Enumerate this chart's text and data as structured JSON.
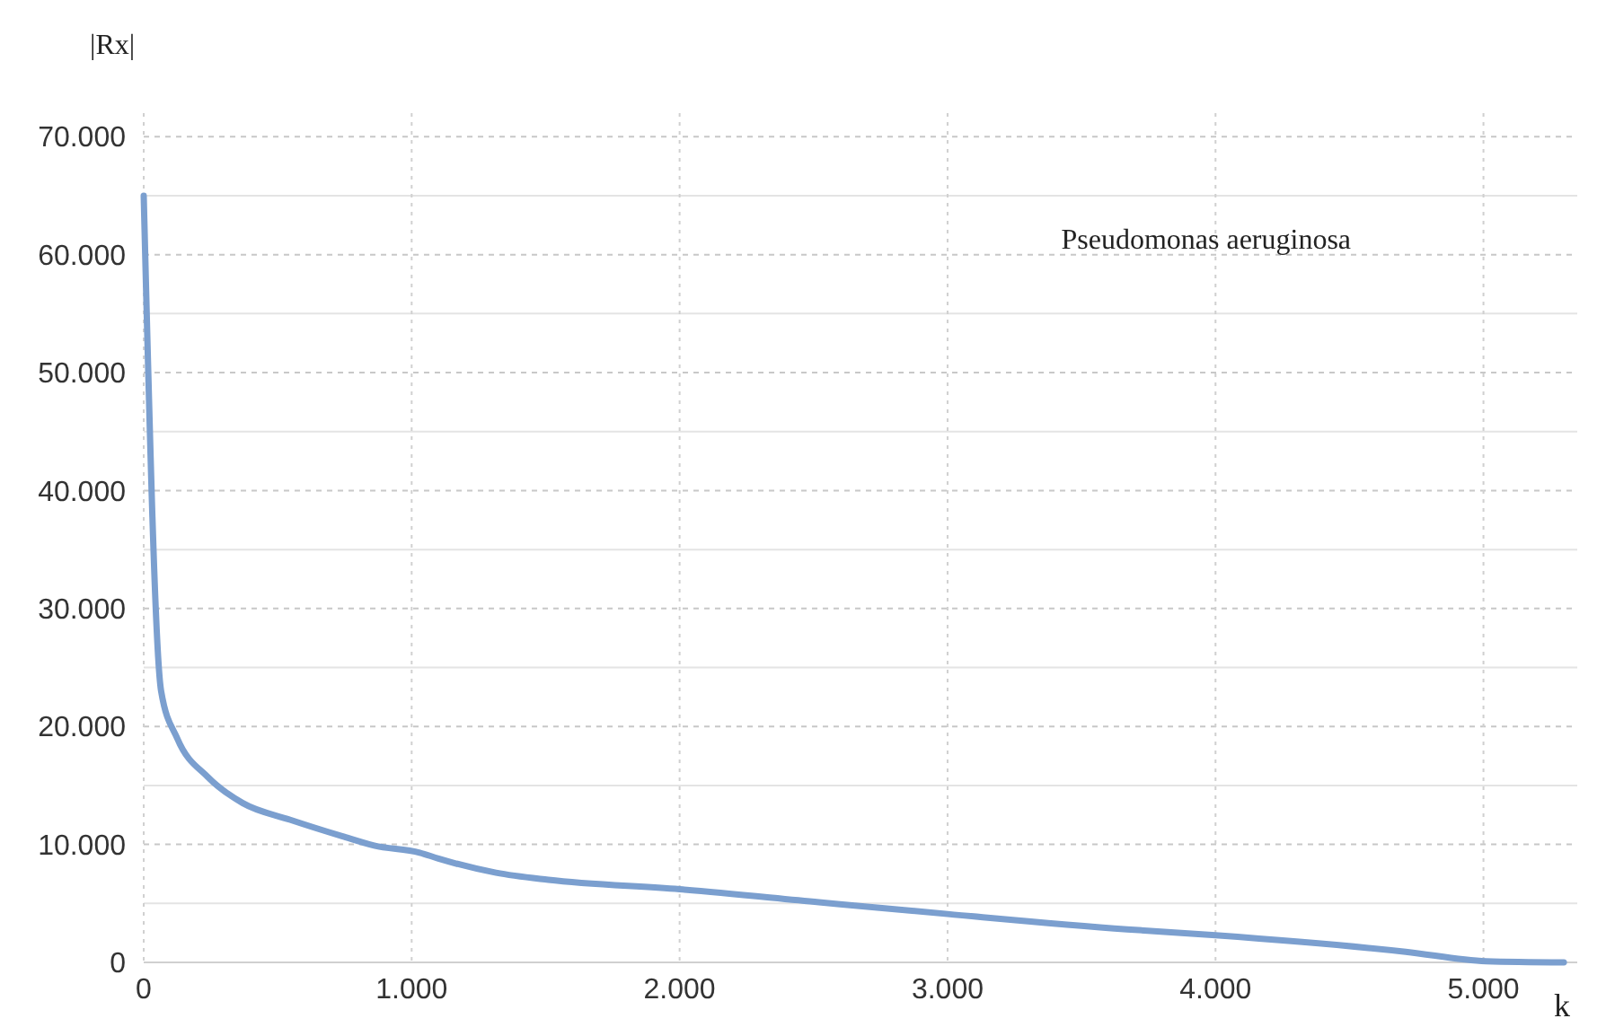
{
  "chart_data": {
    "type": "line",
    "xlabel": "k",
    "ylabel": "|Rx|",
    "annotations": [
      "Pseudomonas aeruginosa"
    ],
    "x": [
      0,
      65,
      125,
      240,
      370,
      545,
      740,
      860,
      1030,
      1100,
      1315,
      1510,
      2000,
      2520,
      3000,
      3670,
      4000,
      4710,
      5010,
      5300
    ],
    "series": [
      {
        "color": "#7b9fcf",
        "values": [
          65000,
          23000,
          19000,
          15700,
          13500,
          12100,
          10700,
          9900,
          9300,
          8800,
          7600,
          7000,
          6200,
          5100,
          4100,
          2800,
          2300,
          900,
          100,
          0
        ]
      }
    ],
    "xlim": [
      0,
      5350
    ],
    "ylim": [
      0,
      72000
    ],
    "xticks": [
      0,
      {
        "value": 1000,
        "label": "1.000"
      },
      {
        "value": 2000,
        "label": "2.000"
      },
      {
        "value": 3000,
        "label": "3.000"
      },
      {
        "value": 4000,
        "label": "4.000"
      },
      {
        "value": 5000,
        "label": "5.000"
      }
    ],
    "yticks": [
      0,
      {
        "value": 10000,
        "label": "10.000"
      },
      {
        "value": 20000,
        "label": "20.000"
      },
      {
        "value": 30000,
        "label": "30.000"
      },
      {
        "value": 40000,
        "label": "40.000"
      },
      {
        "value": 50000,
        "label": "50.000"
      },
      {
        "value": 60000,
        "label": "60.000"
      },
      {
        "value": 70000,
        "label": "70.000"
      }
    ],
    "grid": true,
    "marker": "none",
    "line_style": "solid"
  }
}
